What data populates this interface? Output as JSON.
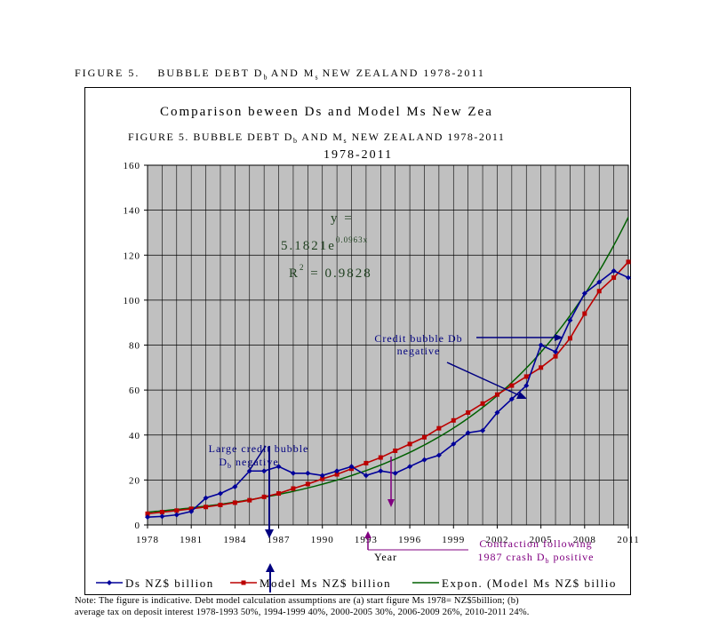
{
  "figure_caption": {
    "prefix": "FIGURE 5.",
    "lead": "BUBBLE DEBT D",
    "sub_b": "b",
    "mid": " AND M",
    "sub_s": "s",
    "tail": " NEW ZEALAND 1978-2011"
  },
  "chart_data": {
    "type": "line",
    "title": "Comparison beween Ds and Model Ms New Zea",
    "subtitle_line1": "FIGURE 5.    BUBBLE DEBT D",
    "subtitle_sub_b": "b",
    "subtitle_mid": " AND M",
    "subtitle_sub_s": "s",
    "subtitle_tail": " NEW ZEALAND 1978-2011",
    "subtitle_line2": "1978-2011",
    "xlabel": "Year",
    "ylabel": "",
    "ylim": [
      0,
      160
    ],
    "xlim": [
      1978,
      2011
    ],
    "y_ticks": [
      0,
      20,
      40,
      60,
      80,
      100,
      120,
      140,
      160
    ],
    "x_ticks": [
      "1978",
      "1981",
      "1984",
      "1987",
      "1990",
      "1993",
      "1996",
      "1999",
      "2002",
      "2005",
      "2008",
      "2011"
    ],
    "grid": true,
    "plot_background": "#c0c0c0",
    "legend_position": "bottom",
    "x": [
      1978,
      1979,
      1980,
      1981,
      1982,
      1983,
      1984,
      1985,
      1986,
      1987,
      1988,
      1989,
      1990,
      1991,
      1992,
      1993,
      1994,
      1995,
      1996,
      1997,
      1998,
      1999,
      2000,
      2001,
      2002,
      2003,
      2004,
      2005,
      2006,
      2007,
      2008,
      2009,
      2010,
      2011
    ],
    "series": [
      {
        "name": "Ds  NZ$ billion",
        "color": "#000099",
        "marker": "diamond",
        "values": [
          3.5,
          3.8,
          4.5,
          6,
          12,
          14,
          17,
          24,
          24,
          26,
          23,
          23,
          22,
          24,
          26,
          22,
          24,
          23,
          26,
          29,
          31,
          36,
          41,
          42,
          50,
          56,
          62,
          80,
          77,
          91,
          103,
          108,
          113,
          110
        ]
      },
      {
        "name": "Model Ms NZ$ billion",
        "color": "#bb0000",
        "marker": "square",
        "values": [
          5,
          5.7,
          6.4,
          7.2,
          8,
          8.9,
          9.9,
          11,
          12.5,
          14,
          16.2,
          18.2,
          20.5,
          22.5,
          25,
          27.5,
          30,
          33,
          36,
          39,
          43,
          46.5,
          50,
          54,
          58,
          62,
          66,
          70,
          75,
          83,
          94,
          104,
          110,
          117
        ]
      },
      {
        "name": "Expon. (Model Ms NZ$ billio",
        "color": "#006000",
        "marker": "none",
        "a": 5.1821,
        "b": 0.0963
      }
    ],
    "equation": {
      "line1": "y =",
      "line2": "5.1821e",
      "line2_sup": "0.0963x",
      "line3": "R",
      "line3_sup": "2",
      "line3_rest": " = 0.9828",
      "color": "#204020"
    },
    "annotations": [
      {
        "id": "large-bubble",
        "line1": "Large credit bubble",
        "line2": "D",
        "line2_sub": "b",
        "line2_rest": " negative",
        "color": "#000080"
      },
      {
        "id": "credit-bubble",
        "line1": "Credit bubble Db",
        "line2": "negative",
        "color": "#000080"
      },
      {
        "id": "contraction",
        "line1": "Contraction following",
        "line2": "1987 crash D",
        "line2_sub": "b",
        "line2_rest": " positive",
        "color": "#800080"
      }
    ]
  },
  "footnote": {
    "line1": "Note: The figure is indicative. Debt model calculation assumptions are (a) start figure Ms 1978= NZ$5billion; (b)",
    "line2": "average tax on deposit interest 1978-1993 50%, 1994-1999 40%, 2000-2005 30%, 2006-2009 26%, 2010-2011 24%."
  }
}
